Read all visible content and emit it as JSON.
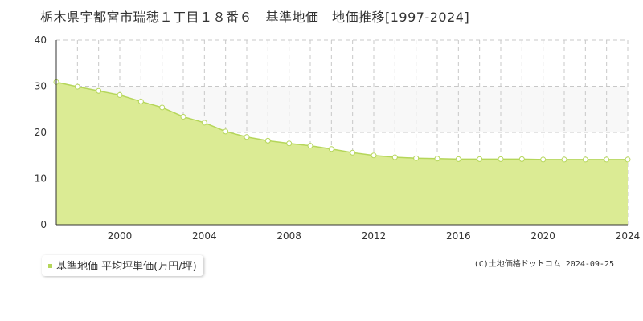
{
  "chart_data": {
    "type": "area",
    "title": "栃木県宇都宮市瑞穂１丁目１８番６　基準地価　地価推移[1997-2024]",
    "xlabel": "",
    "ylabel": "",
    "xlim": [
      1997,
      2024
    ],
    "ylim": [
      0,
      40
    ],
    "x_ticks": [
      "2000",
      "2004",
      "2008",
      "2012",
      "2016",
      "2020",
      "2024"
    ],
    "y_ticks": [
      "0",
      "10",
      "20",
      "30",
      "40"
    ],
    "grid": true,
    "legend_position": "bottom-left",
    "series": [
      {
        "name": "基準地価 平均坪単価(万円/坪)",
        "x": [
          1997,
          1998,
          1999,
          2000,
          2001,
          2002,
          2003,
          2004,
          2005,
          2006,
          2007,
          2008,
          2009,
          2010,
          2011,
          2012,
          2013,
          2014,
          2015,
          2016,
          2017,
          2018,
          2019,
          2020,
          2021,
          2022,
          2023,
          2024
        ],
        "y": [
          30.9,
          29.9,
          29.0,
          28.1,
          26.7,
          25.4,
          23.4,
          22.1,
          20.2,
          19.0,
          18.2,
          17.6,
          17.1,
          16.4,
          15.6,
          15.0,
          14.6,
          14.4,
          14.3,
          14.2,
          14.2,
          14.2,
          14.2,
          14.1,
          14.1,
          14.1,
          14.1,
          14.1
        ]
      }
    ],
    "colors": {
      "fill": "#dbeb94",
      "line": "#b5d65a",
      "marker_fill": "#ffffff",
      "upper_band": "#f8f8f8",
      "grid": "#c8c8c8",
      "legend_marker": "#b5d65a"
    }
  },
  "legend": {
    "label": "基準地価 平均坪単価(万円/坪)"
  },
  "credit": "(C)土地価格ドットコム 2024-09-25"
}
